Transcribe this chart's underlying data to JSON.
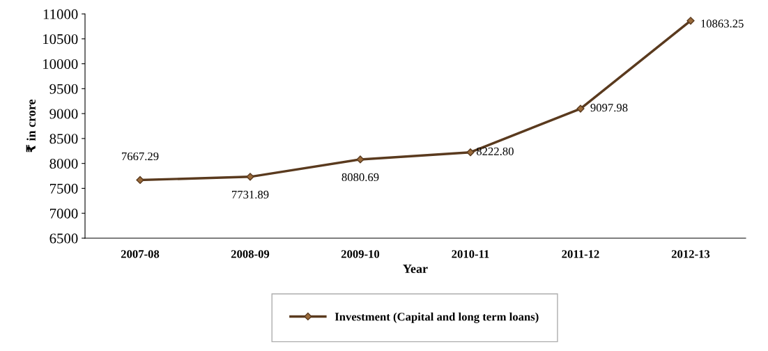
{
  "chart_data": {
    "type": "line",
    "xlabel": "Year",
    "ylabel": "₹ in crore",
    "categories": [
      "2007-08",
      "2008-09",
      "2009-10",
      "2010-11",
      "2011-12",
      "2012-13"
    ],
    "series": [
      {
        "name": "Investment (Capital and long term loans)",
        "color": "#5a3a1e",
        "values": [
          7667.29,
          7731.89,
          8080.69,
          8222.8,
          9097.98,
          10863.25
        ],
        "value_labels": [
          "7667.29",
          "7731.89",
          "8080.69",
          "8222.80",
          "9097.98",
          "10863.25"
        ]
      }
    ],
    "ylim": [
      6500,
      11000
    ],
    "yticks": [
      6500,
      7000,
      7500,
      8000,
      8500,
      9000,
      9500,
      10000,
      10500,
      11000
    ],
    "marker": "diamond",
    "line_style": "solid",
    "grid": false,
    "legend": "bottom"
  }
}
